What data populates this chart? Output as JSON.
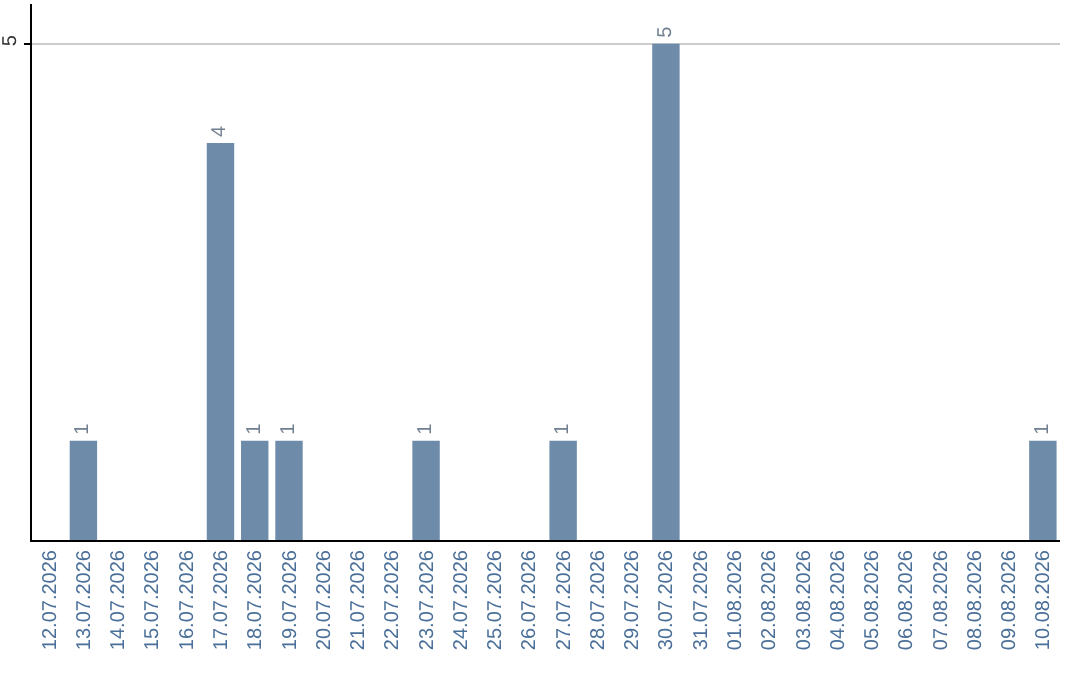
{
  "chart_data": {
    "type": "bar",
    "categories": [
      "12.07.2026",
      "13.07.2026",
      "14.07.2026",
      "15.07.2026",
      "16.07.2026",
      "17.07.2026",
      "18.07.2026",
      "19.07.2026",
      "20.07.2026",
      "21.07.2026",
      "22.07.2026",
      "23.07.2026",
      "24.07.2026",
      "25.07.2026",
      "26.07.2026",
      "27.07.2026",
      "28.07.2026",
      "29.07.2026",
      "30.07.2026",
      "31.07.2026",
      "01.08.2026",
      "02.08.2026",
      "03.08.2026",
      "04.08.2026",
      "05.08.2026",
      "06.08.2026",
      "07.08.2026",
      "08.08.2026",
      "09.08.2026",
      "10.08.2026"
    ],
    "values": [
      null,
      1,
      null,
      null,
      null,
      4,
      1,
      1,
      null,
      null,
      null,
      1,
      null,
      null,
      null,
      1,
      null,
      null,
      5,
      null,
      null,
      null,
      null,
      null,
      null,
      null,
      null,
      null,
      null,
      1
    ],
    "color": "#6e8caa",
    "ylim": [
      0,
      5.4
    ],
    "yticks": [
      5
    ],
    "grid": "y",
    "data_labels": true
  }
}
